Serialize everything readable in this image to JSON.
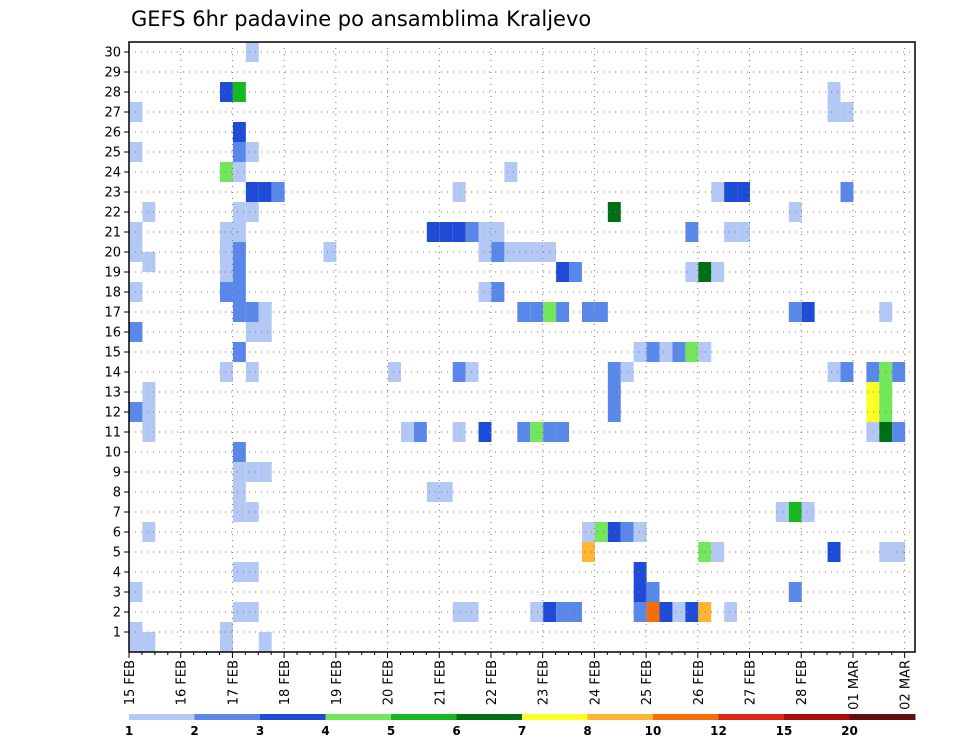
{
  "chart_data": {
    "type": "heatmap",
    "title": "GEFS 6hr padavine po ansamblima Kraljevo",
    "y_ticks": [
      "1",
      "2",
      "3",
      "4",
      "5",
      "6",
      "7",
      "8",
      "9",
      "10",
      "11",
      "12",
      "13",
      "14",
      "15",
      "16",
      "17",
      "18",
      "19",
      "20",
      "21",
      "22",
      "23",
      "24",
      "25",
      "26",
      "27",
      "28",
      "29",
      "30"
    ],
    "x_ticks": [
      "15 FEB",
      "16 FEB",
      "17 FEB",
      "18 FEB",
      "19 FEB",
      "20 FEB",
      "21 FEB",
      "22 FEB",
      "23 FEB",
      "24 FEB",
      "25 FEB",
      "26 FEB",
      "27 FEB",
      "28 FEB",
      "01 MAR",
      "02 MAR"
    ],
    "grid": true,
    "legend": "bottom",
    "levels": [
      "1",
      "2",
      "3",
      "4",
      "5",
      "6",
      "7",
      "8",
      "10",
      "12",
      "15",
      "20"
    ],
    "colors": [
      "#b4c8f5",
      "#5a87ea",
      "#1e4bd7",
      "#73e65a",
      "#14b91e",
      "#006e14",
      "#ffff28",
      "#ffb432",
      "#f56e0a",
      "#dc2814",
      "#aa0a0a",
      "#641010"
    ],
    "cells": [
      {
        "x": 1,
        "y": 0.5,
        "c": 0
      },
      {
        "x": 2,
        "y": 0.5,
        "c": 0
      },
      {
        "x": 8,
        "y": 0.5,
        "c": 0
      },
      {
        "x": 11,
        "y": 0.5,
        "c": 0
      },
      {
        "x": 1,
        "y": 1,
        "c": 0
      },
      {
        "x": 8,
        "y": 1,
        "c": 0
      },
      {
        "x": 9,
        "y": 2,
        "c": 0
      },
      {
        "x": 10,
        "y": 2,
        "c": 0
      },
      {
        "x": 26,
        "y": 2,
        "c": 0
      },
      {
        "x": 27,
        "y": 2,
        "c": 0
      },
      {
        "x": 32,
        "y": 2,
        "c": 0
      },
      {
        "x": 33,
        "y": 2,
        "c": 2
      },
      {
        "x": 34,
        "y": 2,
        "c": 1
      },
      {
        "x": 35,
        "y": 2,
        "c": 1
      },
      {
        "x": 40,
        "y": 2,
        "c": 1
      },
      {
        "x": 41,
        "y": 2,
        "c": 8
      },
      {
        "x": 42,
        "y": 2,
        "c": 2
      },
      {
        "x": 43,
        "y": 2,
        "c": 0
      },
      {
        "x": 44,
        "y": 2,
        "c": 2
      },
      {
        "x": 45,
        "y": 2,
        "c": 7
      },
      {
        "x": 47,
        "y": 2,
        "c": 0
      },
      {
        "x": 1,
        "y": 3,
        "c": 0
      },
      {
        "x": 40,
        "y": 3,
        "c": 2
      },
      {
        "x": 41,
        "y": 3,
        "c": 1
      },
      {
        "x": 52,
        "y": 3,
        "c": 1
      },
      {
        "x": 9,
        "y": 4,
        "c": 0
      },
      {
        "x": 10,
        "y": 4,
        "c": 0
      },
      {
        "x": 40,
        "y": 4,
        "c": 2
      },
      {
        "x": 36,
        "y": 5,
        "c": 7
      },
      {
        "x": 45,
        "y": 5,
        "c": 3
      },
      {
        "x": 46,
        "y": 5,
        "c": 0
      },
      {
        "x": 55,
        "y": 5,
        "c": 2
      },
      {
        "x": 59,
        "y": 5,
        "c": 0
      },
      {
        "x": 60,
        "y": 5,
        "c": 0
      },
      {
        "x": 2,
        "y": 6,
        "c": 0
      },
      {
        "x": 36,
        "y": 6,
        "c": 0
      },
      {
        "x": 37,
        "y": 6,
        "c": 3
      },
      {
        "x": 38,
        "y": 6,
        "c": 2
      },
      {
        "x": 39,
        "y": 6,
        "c": 1
      },
      {
        "x": 40,
        "y": 6,
        "c": 0
      },
      {
        "x": 9,
        "y": 7,
        "c": 0
      },
      {
        "x": 10,
        "y": 7,
        "c": 0
      },
      {
        "x": 51,
        "y": 7,
        "c": 0
      },
      {
        "x": 52,
        "y": 7,
        "c": 4
      },
      {
        "x": 53,
        "y": 7,
        "c": 0
      },
      {
        "x": 9,
        "y": 8,
        "c": 0
      },
      {
        "x": 24,
        "y": 8,
        "c": 0
      },
      {
        "x": 25,
        "y": 8,
        "c": 0
      },
      {
        "x": 9,
        "y": 9,
        "c": 0
      },
      {
        "x": 10,
        "y": 9,
        "c": 0
      },
      {
        "x": 11,
        "y": 9,
        "c": 0
      },
      {
        "x": 9,
        "y": 10,
        "c": 1
      },
      {
        "x": 2,
        "y": 11,
        "c": 0
      },
      {
        "x": 22,
        "y": 11,
        "c": 0
      },
      {
        "x": 23,
        "y": 11,
        "c": 1
      },
      {
        "x": 26,
        "y": 11,
        "c": 0
      },
      {
        "x": 28,
        "y": 11,
        "c": 2
      },
      {
        "x": 31,
        "y": 11,
        "c": 1
      },
      {
        "x": 32,
        "y": 11,
        "c": 3
      },
      {
        "x": 33,
        "y": 11,
        "c": 1
      },
      {
        "x": 34,
        "y": 11,
        "c": 1
      },
      {
        "x": 58,
        "y": 11,
        "c": 0
      },
      {
        "x": 59,
        "y": 11,
        "c": 5
      },
      {
        "x": 60,
        "y": 11,
        "c": 1
      },
      {
        "x": 1,
        "y": 12,
        "c": 1
      },
      {
        "x": 2,
        "y": 12,
        "c": 0
      },
      {
        "x": 38,
        "y": 12,
        "c": 1
      },
      {
        "x": 58,
        "y": 12,
        "c": 6
      },
      {
        "x": 59,
        "y": 12,
        "c": 3
      },
      {
        "x": 2,
        "y": 13,
        "c": 0
      },
      {
        "x": 38,
        "y": 13,
        "c": 1
      },
      {
        "x": 58,
        "y": 13,
        "c": 6
      },
      {
        "x": 59,
        "y": 13,
        "c": 3
      },
      {
        "x": 8,
        "y": 14,
        "c": 0
      },
      {
        "x": 10,
        "y": 14,
        "c": 0
      },
      {
        "x": 21,
        "y": 14,
        "c": 0
      },
      {
        "x": 26,
        "y": 14,
        "c": 1
      },
      {
        "x": 27,
        "y": 14,
        "c": 0
      },
      {
        "x": 38,
        "y": 14,
        "c": 1
      },
      {
        "x": 39,
        "y": 14,
        "c": 0
      },
      {
        "x": 55,
        "y": 14,
        "c": 0
      },
      {
        "x": 56,
        "y": 14,
        "c": 1
      },
      {
        "x": 58,
        "y": 14,
        "c": 1
      },
      {
        "x": 59,
        "y": 14,
        "c": 3
      },
      {
        "x": 60,
        "y": 14,
        "c": 1
      },
      {
        "x": 9,
        "y": 15,
        "c": 1
      },
      {
        "x": 40,
        "y": 15,
        "c": 0
      },
      {
        "x": 41,
        "y": 15,
        "c": 1
      },
      {
        "x": 42,
        "y": 15,
        "c": 0
      },
      {
        "x": 43,
        "y": 15,
        "c": 1
      },
      {
        "x": 44,
        "y": 15,
        "c": 3
      },
      {
        "x": 45,
        "y": 15,
        "c": 0
      },
      {
        "x": 1,
        "y": 16,
        "c": 1
      },
      {
        "x": 10,
        "y": 16,
        "c": 0
      },
      {
        "x": 11,
        "y": 16,
        "c": 0
      },
      {
        "x": 9,
        "y": 17,
        "c": 1
      },
      {
        "x": 10,
        "y": 17,
        "c": 1
      },
      {
        "x": 11,
        "y": 17,
        "c": 0
      },
      {
        "x": 31,
        "y": 17,
        "c": 1
      },
      {
        "x": 32,
        "y": 17,
        "c": 1
      },
      {
        "x": 33,
        "y": 17,
        "c": 3
      },
      {
        "x": 34,
        "y": 17,
        "c": 1
      },
      {
        "x": 36,
        "y": 17,
        "c": 1
      },
      {
        "x": 37,
        "y": 17,
        "c": 1
      },
      {
        "x": 52,
        "y": 17,
        "c": 1
      },
      {
        "x": 53,
        "y": 17,
        "c": 2
      },
      {
        "x": 59,
        "y": 17,
        "c": 0
      },
      {
        "x": 1,
        "y": 18,
        "c": 0
      },
      {
        "x": 8,
        "y": 18,
        "c": 1
      },
      {
        "x": 9,
        "y": 18,
        "c": 1
      },
      {
        "x": 28,
        "y": 18,
        "c": 0
      },
      {
        "x": 29,
        "y": 18,
        "c": 1
      },
      {
        "x": 8,
        "y": 19,
        "c": 0
      },
      {
        "x": 9,
        "y": 19,
        "c": 1
      },
      {
        "x": 34,
        "y": 19,
        "c": 2
      },
      {
        "x": 35,
        "y": 19,
        "c": 1
      },
      {
        "x": 44,
        "y": 19,
        "c": 0
      },
      {
        "x": 45,
        "y": 19,
        "c": 5
      },
      {
        "x": 46,
        "y": 19,
        "c": 0
      },
      {
        "x": 2,
        "y": 19.5,
        "c": 0
      },
      {
        "x": 1,
        "y": 20,
        "c": 0
      },
      {
        "x": 8,
        "y": 20,
        "c": 0
      },
      {
        "x": 9,
        "y": 20,
        "c": 1
      },
      {
        "x": 16,
        "y": 20,
        "c": 0
      },
      {
        "x": 28,
        "y": 20,
        "c": 0
      },
      {
        "x": 29,
        "y": 20,
        "c": 1
      },
      {
        "x": 30,
        "y": 20,
        "c": 0
      },
      {
        "x": 31,
        "y": 20,
        "c": 0
      },
      {
        "x": 32,
        "y": 20,
        "c": 0
      },
      {
        "x": 33,
        "y": 20,
        "c": 0
      },
      {
        "x": 1,
        "y": 21,
        "c": 0
      },
      {
        "x": 8,
        "y": 21,
        "c": 0
      },
      {
        "x": 9,
        "y": 21,
        "c": 0
      },
      {
        "x": 24,
        "y": 21,
        "c": 2
      },
      {
        "x": 25,
        "y": 21,
        "c": 2
      },
      {
        "x": 26,
        "y": 21,
        "c": 2
      },
      {
        "x": 27,
        "y": 21,
        "c": 1
      },
      {
        "x": 28,
        "y": 21,
        "c": 0
      },
      {
        "x": 29,
        "y": 21,
        "c": 0
      },
      {
        "x": 44,
        "y": 21,
        "c": 1
      },
      {
        "x": 47,
        "y": 21,
        "c": 0
      },
      {
        "x": 48,
        "y": 21,
        "c": 0
      },
      {
        "x": 2,
        "y": 22,
        "c": 0
      },
      {
        "x": 9,
        "y": 22,
        "c": 0
      },
      {
        "x": 10,
        "y": 22,
        "c": 0
      },
      {
        "x": 38,
        "y": 22,
        "c": 5
      },
      {
        "x": 52,
        "y": 22,
        "c": 0
      },
      {
        "x": 10,
        "y": 23,
        "c": 2
      },
      {
        "x": 11,
        "y": 23,
        "c": 2
      },
      {
        "x": 12,
        "y": 23,
        "c": 1
      },
      {
        "x": 26,
        "y": 23,
        "c": 0
      },
      {
        "x": 46,
        "y": 23,
        "c": 0
      },
      {
        "x": 47,
        "y": 23,
        "c": 2
      },
      {
        "x": 48,
        "y": 23,
        "c": 2
      },
      {
        "x": 56,
        "y": 23,
        "c": 1
      },
      {
        "x": 8,
        "y": 24,
        "c": 3
      },
      {
        "x": 9,
        "y": 24,
        "c": 0
      },
      {
        "x": 30,
        "y": 24,
        "c": 0
      },
      {
        "x": 1,
        "y": 25,
        "c": 0
      },
      {
        "x": 9,
        "y": 25,
        "c": 1
      },
      {
        "x": 10,
        "y": 25,
        "c": 0
      },
      {
        "x": 9,
        "y": 26,
        "c": 2
      },
      {
        "x": 1,
        "y": 27,
        "c": 0
      },
      {
        "x": 55,
        "y": 27,
        "c": 0
      },
      {
        "x": 56,
        "y": 27,
        "c": 0
      },
      {
        "x": 8,
        "y": 28,
        "c": 2
      },
      {
        "x": 9,
        "y": 28,
        "c": 4
      },
      {
        "x": 55,
        "y": 28,
        "c": 0
      },
      {
        "x": 10,
        "y": 30,
        "c": 0
      }
    ]
  }
}
